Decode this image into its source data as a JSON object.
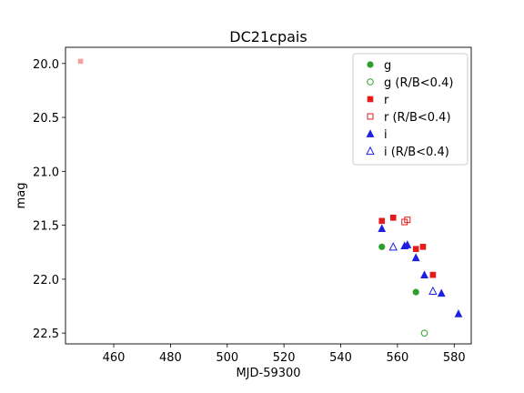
{
  "chart_data": {
    "type": "scatter",
    "title": "DC21cpais",
    "xlabel": "MJD-59300",
    "ylabel": "mag",
    "xlim": [
      443,
      586
    ],
    "ylim": [
      22.6,
      19.85
    ],
    "y_inverted": true,
    "xticks": [
      460,
      480,
      500,
      520,
      540,
      560,
      580
    ],
    "yticks": [
      20.0,
      20.5,
      21.0,
      21.5,
      22.0,
      22.5
    ],
    "xtick_labels": [
      "460",
      "480",
      "500",
      "520",
      "540",
      "560",
      "580"
    ],
    "ytick_labels": [
      "20.0",
      "20.5",
      "21.0",
      "21.5",
      "22.0",
      "22.5"
    ],
    "grid": false,
    "legend_position": "top-right",
    "series": [
      {
        "name": "g",
        "color": "#2ca02c",
        "marker": "circle",
        "filled": true,
        "points": [
          [
            554.5,
            21.7
          ],
          [
            566.5,
            22.12
          ]
        ]
      },
      {
        "name": "g (R/B<0.4)",
        "color": "#2ca02c",
        "marker": "circle",
        "filled": false,
        "points": [
          [
            569.5,
            22.5
          ]
        ]
      },
      {
        "name": "r",
        "color": "#e41a1c",
        "marker": "square",
        "filled": true,
        "points": [
          [
            554.5,
            21.46
          ],
          [
            558.5,
            21.43
          ],
          [
            566.5,
            21.72
          ],
          [
            569.0,
            21.7
          ],
          [
            572.5,
            21.96
          ]
        ]
      },
      {
        "name": "r (R/B<0.4)",
        "color": "#e41a1c",
        "marker": "square",
        "filled": false,
        "points": [
          [
            562.5,
            21.47
          ],
          [
            563.5,
            21.45
          ]
        ]
      },
      {
        "name": "i",
        "color": "#1f1fe0",
        "marker": "triangle",
        "filled": true,
        "points": [
          [
            554.5,
            21.53
          ],
          [
            562.5,
            21.69
          ],
          [
            563.5,
            21.68
          ],
          [
            566.5,
            21.8
          ],
          [
            569.5,
            21.96
          ],
          [
            575.5,
            22.13
          ],
          [
            581.5,
            22.32
          ]
        ]
      },
      {
        "name": "i (R/B<0.4)",
        "color": "#1f1fe0",
        "marker": "triangle",
        "filled": false,
        "points": [
          [
            558.5,
            21.7
          ],
          [
            572.5,
            22.11
          ]
        ]
      }
    ],
    "extra_points": [
      {
        "color": "#f4a0a0",
        "marker": "square",
        "filled": true,
        "points": [
          [
            448.3,
            19.98
          ]
        ]
      }
    ]
  }
}
